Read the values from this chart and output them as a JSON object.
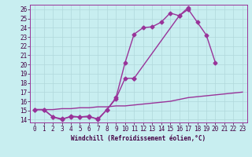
{
  "xlabel": "Windchill (Refroidissement éolien,°C)",
  "xlim": [
    -0.5,
    23.5
  ],
  "ylim": [
    13.7,
    26.5
  ],
  "xticks": [
    0,
    1,
    2,
    3,
    4,
    5,
    6,
    7,
    8,
    9,
    10,
    11,
    12,
    13,
    14,
    15,
    16,
    17,
    18,
    19,
    20,
    21,
    22,
    23
  ],
  "yticks": [
    14,
    15,
    16,
    17,
    18,
    19,
    20,
    21,
    22,
    23,
    24,
    25,
    26
  ],
  "bg_color": "#c8eef0",
  "grid_color": "#b0d8db",
  "line_color": "#993399",
  "line1_x": [
    0,
    1,
    2,
    3,
    4,
    5,
    6,
    7,
    8,
    9,
    10,
    11,
    12,
    13,
    14,
    15,
    16,
    17
  ],
  "line1_y": [
    15.1,
    15.1,
    14.3,
    14.1,
    14.3,
    14.3,
    14.3,
    14.1,
    15.1,
    16.4,
    20.2,
    23.3,
    24.0,
    24.1,
    24.6,
    25.6,
    25.3,
    26.2
  ],
  "line2a_x": [
    0,
    1,
    2,
    3,
    4,
    5,
    6,
    7,
    8,
    9,
    10,
    11
  ],
  "line2a_y": [
    15.1,
    15.1,
    14.3,
    14.0,
    14.4,
    14.3,
    14.4,
    14.0,
    15.1,
    16.3,
    18.5,
    18.5
  ],
  "line2b_x": [
    11,
    16,
    17,
    18,
    19,
    20
  ],
  "line2b_y": [
    18.5,
    25.3,
    26.0,
    24.6,
    23.2,
    20.2
  ],
  "line3_x": [
    0,
    1,
    2,
    3,
    4,
    5,
    6,
    7,
    8,
    9,
    10,
    11,
    12,
    13,
    14,
    15,
    16,
    17,
    18,
    19,
    20,
    21,
    22,
    23
  ],
  "line3_y": [
    15.1,
    15.1,
    15.1,
    15.2,
    15.2,
    15.3,
    15.3,
    15.4,
    15.4,
    15.5,
    15.5,
    15.6,
    15.7,
    15.8,
    15.9,
    16.0,
    16.2,
    16.4,
    16.5,
    16.6,
    16.7,
    16.8,
    16.9,
    17.0
  ],
  "markersize": 2.5,
  "linewidth": 1.0,
  "tick_fontsize": 5.5
}
